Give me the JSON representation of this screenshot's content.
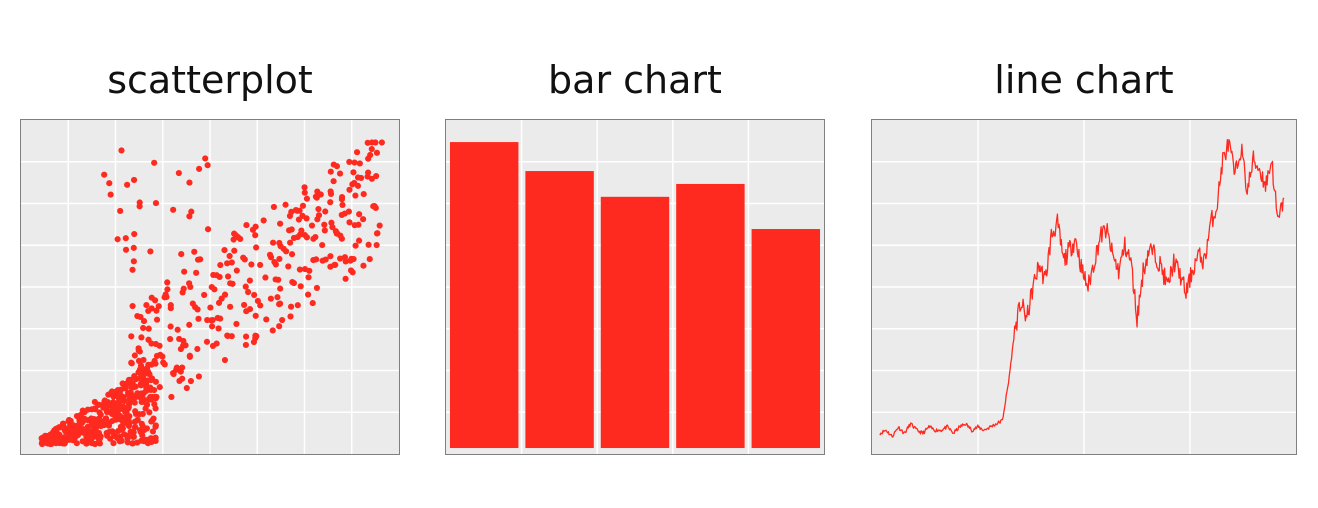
{
  "colors": {
    "mark": "#ff2a1f",
    "panel_bg": "#ebebeb",
    "grid": "#ffffff",
    "border": "#7f7f7f"
  },
  "chart_data": [
    {
      "type": "scatter",
      "title": "scatterplot",
      "xlabel": "",
      "ylabel": "",
      "xlim": [
        0,
        100
      ],
      "ylim": [
        0,
        100
      ],
      "grid": true,
      "cluster_points": [
        [
          3,
          1
        ],
        [
          4,
          2
        ],
        [
          5,
          3
        ],
        [
          6,
          2
        ],
        [
          7,
          4
        ],
        [
          8,
          5
        ],
        [
          9,
          6
        ],
        [
          10,
          7
        ],
        [
          11,
          8
        ],
        [
          12,
          9
        ],
        [
          13,
          10
        ],
        [
          14,
          12
        ],
        [
          15,
          14
        ],
        [
          16,
          16
        ],
        [
          17,
          18
        ],
        [
          18,
          20
        ],
        [
          19,
          22
        ],
        [
          20,
          24
        ],
        [
          21,
          26
        ],
        [
          22,
          28
        ],
        [
          23,
          30
        ],
        [
          24,
          32
        ],
        [
          25,
          34
        ],
        [
          26,
          36
        ],
        [
          27,
          38
        ],
        [
          28,
          40
        ],
        [
          29,
          42
        ],
        [
          4,
          6
        ],
        [
          6,
          8
        ],
        [
          8,
          11
        ],
        [
          10,
          13
        ],
        [
          12,
          15
        ],
        [
          14,
          18
        ],
        [
          16,
          21
        ],
        [
          18,
          24
        ],
        [
          20,
          28
        ],
        [
          22,
          31
        ],
        [
          24,
          35
        ],
        [
          26,
          38
        ],
        [
          28,
          41
        ],
        [
          30,
          44
        ],
        [
          32,
          48
        ],
        [
          34,
          51
        ],
        [
          36,
          54
        ],
        [
          38,
          57
        ],
        [
          40,
          60
        ],
        [
          42,
          62
        ],
        [
          44,
          65
        ],
        [
          46,
          68
        ],
        [
          48,
          70
        ],
        [
          50,
          73
        ],
        [
          52,
          75
        ],
        [
          54,
          78
        ],
        [
          56,
          80
        ],
        [
          58,
          82
        ],
        [
          60,
          84
        ],
        [
          62,
          86
        ],
        [
          64,
          88
        ],
        [
          66,
          90
        ],
        [
          68,
          92
        ],
        [
          70,
          94
        ],
        [
          72,
          96
        ],
        [
          74,
          98
        ],
        [
          16,
          30
        ],
        [
          18,
          34
        ],
        [
          20,
          38
        ],
        [
          22,
          42
        ],
        [
          24,
          46
        ],
        [
          26,
          50
        ],
        [
          28,
          54
        ],
        [
          30,
          58
        ],
        [
          32,
          62
        ],
        [
          34,
          66
        ],
        [
          36,
          70
        ],
        [
          38,
          74
        ],
        [
          40,
          78
        ],
        [
          42,
          82
        ],
        [
          44,
          86
        ],
        [
          46,
          88
        ]
      ],
      "series": [
        {
          "name": "",
          "points": [
            [
              2,
              2
            ],
            [
              3,
              3
            ],
            [
              4,
              4
            ],
            [
              5,
              5
            ],
            [
              6,
              6
            ],
            [
              7,
              7
            ],
            [
              8,
              8
            ],
            [
              9,
              9
            ],
            [
              10,
              10
            ],
            [
              11,
              11
            ],
            [
              12,
              12
            ],
            [
              13,
              13
            ],
            [
              14,
              14
            ],
            [
              15,
              15
            ],
            [
              16,
              16
            ],
            [
              17,
              17
            ],
            [
              18,
              18
            ],
            [
              19,
              19
            ],
            [
              20,
              20
            ],
            [
              21,
              21
            ],
            [
              22,
              22
            ],
            [
              23,
              23
            ],
            [
              24,
              24
            ],
            [
              25,
              25
            ],
            [
              26,
              26
            ],
            [
              27,
              27
            ],
            [
              28,
              28
            ],
            [
              29,
              29
            ],
            [
              30,
              30
            ],
            [
              31,
              31
            ],
            [
              32,
              32
            ],
            [
              33,
              33
            ],
            [
              34,
              34
            ],
            [
              35,
              35
            ],
            [
              36,
              36
            ],
            [
              37,
              37
            ],
            [
              38,
              38
            ],
            [
              39,
              39
            ],
            [
              40,
              40
            ],
            [
              41,
              41
            ],
            [
              42,
              42
            ],
            [
              43,
              43
            ],
            [
              44,
              44
            ],
            [
              45,
              45
            ],
            [
              46,
              46
            ],
            [
              47,
              47
            ],
            [
              48,
              48
            ],
            [
              49,
              49
            ],
            [
              50,
              50
            ],
            [
              51,
              51
            ],
            [
              52,
              52
            ],
            [
              53,
              53
            ],
            [
              54,
              54
            ],
            [
              55,
              55
            ],
            [
              56,
              56
            ],
            [
              57,
              57
            ],
            [
              58,
              58
            ],
            [
              59,
              59
            ],
            [
              60,
              60
            ],
            [
              61,
              61
            ],
            [
              62,
              62
            ],
            [
              63,
              63
            ],
            [
              64,
              64
            ],
            [
              65,
              65
            ],
            [
              66,
              66
            ],
            [
              67,
              67
            ],
            [
              68,
              68
            ],
            [
              69,
              69
            ],
            [
              70,
              70
            ],
            [
              71,
              71
            ],
            [
              72,
              72
            ],
            [
              73,
              73
            ],
            [
              74,
              74
            ],
            [
              75,
              75
            ],
            [
              76,
              76
            ],
            [
              77,
              77
            ],
            [
              78,
              78
            ],
            [
              79,
              79
            ],
            [
              80,
              80
            ],
            [
              81,
              81
            ],
            [
              82,
              82
            ],
            [
              83,
              83
            ],
            [
              84,
              84
            ],
            [
              85,
              85
            ],
            [
              86,
              86
            ],
            [
              87,
              87
            ],
            [
              88,
              88
            ],
            [
              89,
              89
            ],
            [
              90,
              90
            ],
            [
              91,
              91
            ],
            [
              92,
              92
            ],
            [
              93,
              93
            ],
            [
              94,
              94
            ],
            [
              95,
              95
            ],
            [
              96,
              96
            ],
            [
              97,
              97
            ],
            [
              98,
              98
            ]
          ]
        }
      ],
      "dense_cluster": {
        "x_range": [
          3,
          35
        ],
        "y_range": [
          0,
          25
        ]
      },
      "scattered_cloud": {
        "x_range": [
          30,
          98
        ],
        "y_range": [
          20,
          85
        ]
      }
    },
    {
      "type": "bar",
      "title": "bar chart",
      "xlabel": "",
      "ylabel": "",
      "categories": [
        "",
        "",
        "",
        "",
        ""
      ],
      "values": [
        95,
        86,
        78,
        82,
        68
      ],
      "ylim": [
        0,
        100
      ],
      "grid": true
    },
    {
      "type": "line",
      "title": "line chart",
      "xlabel": "",
      "ylabel": "",
      "xlim": [
        0,
        100
      ],
      "ylim": [
        0,
        100
      ],
      "grid": true,
      "series": [
        {
          "name": "",
          "x": [
            0,
            1.5,
            3,
            4.5,
            6,
            7.5,
            9,
            10.5,
            12,
            13.5,
            15,
            16.5,
            18,
            19.5,
            21,
            22.5,
            24,
            25.5,
            27,
            28.5,
            30,
            31.5,
            33,
            34.5,
            36,
            37.5,
            39,
            40.5,
            42,
            43.5,
            45,
            46.5,
            48,
            49.5,
            51,
            52.5,
            54,
            55.5,
            57,
            58.5,
            60,
            61.5,
            63,
            64.5,
            66,
            67.5,
            69,
            70.5,
            72,
            73.5,
            75,
            76.5,
            78,
            79.5,
            81,
            82.5,
            84,
            85.5,
            87,
            88.5,
            90,
            91.5,
            93,
            94.5,
            96,
            97.5,
            99
          ],
          "y": [
            4,
            5,
            3,
            6,
            4,
            7,
            5,
            4,
            6,
            5,
            5,
            6,
            4,
            6,
            7,
            5,
            6,
            5,
            6,
            7,
            8,
            20,
            36,
            45,
            40,
            50,
            57,
            52,
            66,
            70,
            58,
            62,
            65,
            55,
            50,
            58,
            66,
            68,
            60,
            55,
            63,
            58,
            40,
            55,
            62,
            60,
            56,
            50,
            58,
            54,
            48,
            55,
            60,
            58,
            70,
            75,
            90,
            95,
            85,
            94,
            80,
            90,
            87,
            82,
            90,
            70,
            78
          ]
        }
      ]
    }
  ]
}
